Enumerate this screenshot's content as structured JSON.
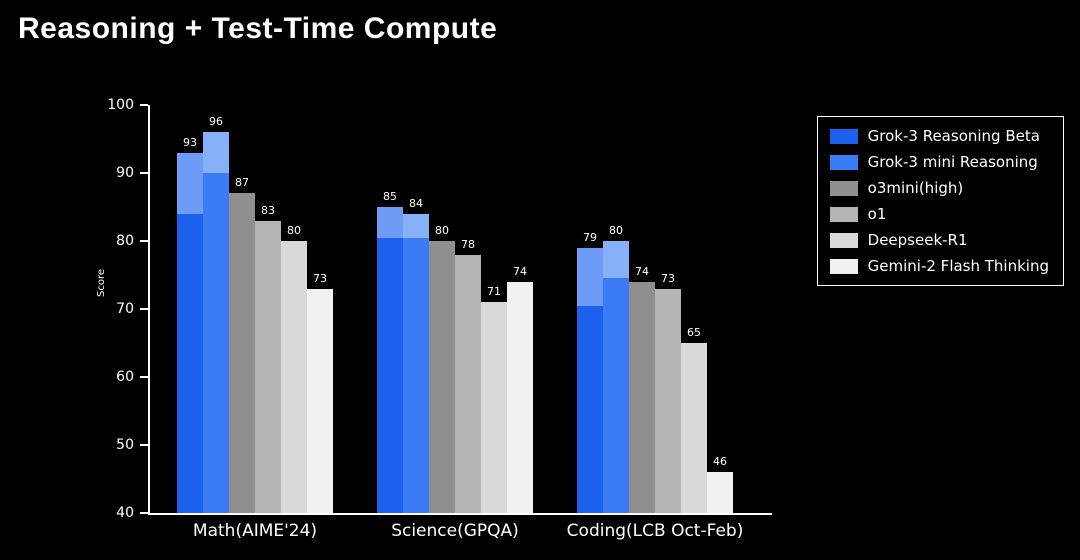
{
  "title": "Reasoning + Test-Time Compute",
  "chart_data": {
    "type": "bar",
    "title": "Reasoning + Test-Time Compute",
    "xlabel": "",
    "ylabel": "Score",
    "ylim": [
      40,
      100
    ],
    "yticks": [
      40,
      50,
      60,
      70,
      80,
      90,
      100
    ],
    "grid": false,
    "legend_position": "upper right",
    "categories": [
      "Math(AIME'24)",
      "Science(GPQA)",
      "Coding(LCB Oct-Feb)"
    ],
    "series": [
      {
        "name": "Grok-3 Reasoning Beta",
        "color": "#1c60ee",
        "light_color": "#6d9bf5",
        "values": [
          93,
          85,
          79
        ],
        "solid_values": [
          84,
          80.5,
          70.5
        ],
        "note": "lighter top segment = extra test-time compute"
      },
      {
        "name": "Grok-3 mini Reasoning",
        "color": "#3b7cf6",
        "light_color": "#86b0f8",
        "values": [
          96,
          84,
          80
        ],
        "solid_values": [
          90,
          80.5,
          74.5
        ],
        "note": "lighter top segment = extra test-time compute"
      },
      {
        "name": "o3mini(high)",
        "color": "#8f8f8f",
        "values": [
          87,
          80,
          74
        ]
      },
      {
        "name": "o1",
        "color": "#b5b5b5",
        "values": [
          83,
          78,
          73
        ]
      },
      {
        "name": "Deepseek-R1",
        "color": "#d9d9d9",
        "values": [
          80,
          71,
          65
        ]
      },
      {
        "name": "Gemini-2 Flash Thinking",
        "color": "#f1f1f1",
        "values": [
          73,
          74,
          46
        ]
      }
    ]
  },
  "colors": {
    "background": "#000000",
    "axis": "#ffffff",
    "text": "#ffffff"
  }
}
